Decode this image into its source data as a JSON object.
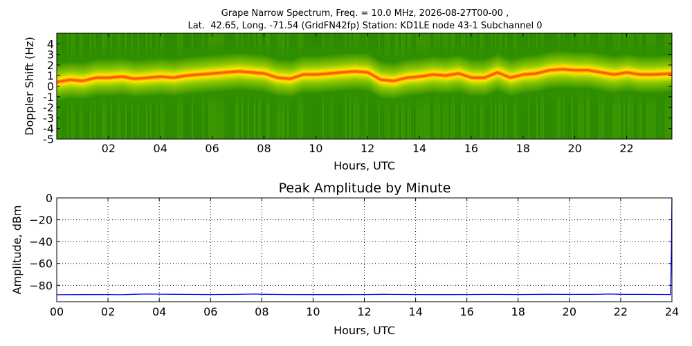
{
  "figure": {
    "title_line1": "Grape Narrow Spectrum, Freq. = 10.0 MHz, 2026-08-27T00-00 ,",
    "title_line2": "Lat.  42.65, Long. -71.54 (GridFN42fp) Station: KD1LE node 43-1 Subchannel 0"
  },
  "chart_data": [
    {
      "type": "heatmap",
      "title": "",
      "xlabel": "Hours, UTC",
      "ylabel": "Doppler Shift (Hz)",
      "xlim": [
        0,
        23.75
      ],
      "ylim": [
        -5,
        5
      ],
      "xticks": [
        "02",
        "04",
        "06",
        "08",
        "10",
        "12",
        "14",
        "16",
        "18",
        "20",
        "22"
      ],
      "xtick_values": [
        2,
        4,
        6,
        8,
        10,
        12,
        14,
        16,
        18,
        20,
        22
      ],
      "yticks": [
        "4",
        "3",
        "2",
        "1",
        "0",
        "-1",
        "-2",
        "-3",
        "-4",
        "-5"
      ],
      "ytick_values": [
        4,
        3,
        2,
        1,
        0,
        -1,
        -2,
        -3,
        -4,
        -5
      ],
      "colors": {
        "background": "#2f8f00",
        "mid": "#8fc800",
        "high": "#ffe600",
        "peak": "#ff5a00"
      },
      "peak_doppler_trace": {
        "x": [
          0,
          0.5,
          1,
          1.5,
          2,
          2.5,
          3,
          3.5,
          4,
          4.5,
          5,
          5.5,
          6,
          6.5,
          7,
          7.5,
          8,
          8.5,
          9,
          9.5,
          10,
          10.5,
          11,
          11.5,
          12,
          12.5,
          13,
          13.5,
          14,
          14.5,
          15,
          15.5,
          16,
          16.5,
          17,
          17.5,
          18,
          18.5,
          19,
          19.5,
          20,
          20.5,
          21,
          21.5,
          22,
          22.5,
          23,
          23.75
        ],
        "y": [
          0.4,
          0.6,
          0.5,
          0.8,
          0.8,
          0.9,
          0.7,
          0.8,
          0.9,
          0.8,
          1.0,
          1.1,
          1.2,
          1.3,
          1.4,
          1.3,
          1.2,
          0.8,
          0.7,
          1.1,
          1.1,
          1.2,
          1.3,
          1.4,
          1.3,
          0.6,
          0.5,
          0.8,
          0.9,
          1.1,
          1.0,
          1.2,
          0.8,
          0.8,
          1.3,
          0.8,
          1.1,
          1.2,
          1.5,
          1.6,
          1.5,
          1.5,
          1.3,
          1.1,
          1.3,
          1.1,
          1.1,
          1.2
        ]
      }
    },
    {
      "type": "line",
      "title": "Peak Amplitude by Minute",
      "xlabel": "Hours, UTC",
      "ylabel": "Amplitude, dBm",
      "xlim": [
        0,
        24
      ],
      "ylim": [
        -95,
        0
      ],
      "grid": true,
      "xticks": [
        "00",
        "02",
        "04",
        "06",
        "08",
        "10",
        "12",
        "14",
        "16",
        "18",
        "20",
        "22",
        "24"
      ],
      "xtick_values": [
        0,
        2,
        4,
        6,
        8,
        10,
        12,
        14,
        16,
        18,
        20,
        22,
        24
      ],
      "yticks": [
        "0",
        "−20",
        "−40",
        "−60",
        "−80"
      ],
      "ytick_values": [
        0,
        -20,
        -40,
        -60,
        -80
      ],
      "color": "#0000ff",
      "series": [
        {
          "x": [
            0,
            1,
            2,
            2.5,
            3,
            3.5,
            4,
            5,
            6,
            7,
            7.8,
            8,
            9,
            10,
            11,
            12,
            12.8,
            13,
            14,
            15,
            16,
            17,
            18,
            19,
            20,
            21,
            21.6,
            22,
            23,
            23.95,
            23.98,
            24
          ],
          "values": [
            -88.6,
            -88.5,
            -88.4,
            -88.6,
            -88.2,
            -88.0,
            -88.1,
            -88.3,
            -88.4,
            -88.3,
            -88.0,
            -88.2,
            -88.4,
            -88.5,
            -88.5,
            -88.4,
            -88.2,
            -88.3,
            -88.4,
            -88.5,
            -88.4,
            -88.3,
            -88.4,
            -88.2,
            -88.3,
            -88.3,
            -88.0,
            -88.2,
            -88.3,
            -88.4,
            -45,
            0
          ]
        }
      ]
    }
  ]
}
